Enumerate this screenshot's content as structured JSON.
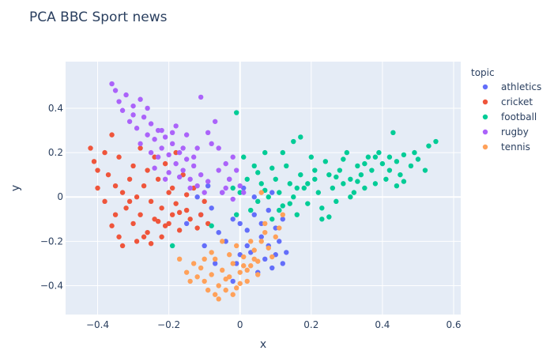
{
  "chart_data": {
    "type": "scatter",
    "title": "PCA BBC Sport news",
    "xlabel": "x",
    "ylabel": "y",
    "xlim": [
      -0.49,
      0.62
    ],
    "ylim": [
      -0.53,
      0.61
    ],
    "x_ticks": [
      -0.4,
      -0.2,
      0,
      0.2,
      0.4,
      0.6
    ],
    "x_tick_labels": [
      "−0.4",
      "−0.2",
      "0",
      "0.2",
      "0.4",
      "0.6"
    ],
    "y_ticks": [
      -0.4,
      -0.2,
      0,
      0.2,
      0.4
    ],
    "y_tick_labels": [
      "−0.4",
      "−0.2",
      "0",
      "0.2",
      "0.4"
    ],
    "grid": true,
    "legend": {
      "title": "topic",
      "position": "right"
    },
    "series": [
      {
        "name": "athletics",
        "color": "#636efa",
        "points": [
          [
            -0.02,
            -0.1
          ],
          [
            0.0,
            -0.12
          ],
          [
            0.02,
            -0.15
          ],
          [
            0.04,
            -0.08
          ],
          [
            0.06,
            -0.18
          ],
          [
            0.08,
            -0.22
          ],
          [
            0.1,
            -0.14
          ],
          [
            -0.04,
            -0.2
          ],
          [
            -0.06,
            -0.16
          ],
          [
            0.03,
            -0.25
          ],
          [
            0.07,
            -0.28
          ],
          [
            0.09,
            -0.32
          ],
          [
            -0.01,
            -0.3
          ],
          [
            0.05,
            -0.34
          ],
          [
            0.11,
            -0.2
          ],
          [
            0.12,
            -0.1
          ],
          [
            -0.08,
            -0.05
          ],
          [
            -0.05,
            0.02
          ],
          [
            -0.09,
            0.05
          ],
          [
            -0.03,
            0.08
          ],
          [
            0.01,
            0.04
          ],
          [
            -0.12,
            0.0
          ],
          [
            -0.15,
            -0.12
          ],
          [
            -0.1,
            -0.22
          ],
          [
            -0.07,
            -0.3
          ],
          [
            0.13,
            -0.25
          ],
          [
            0.08,
            -0.06
          ],
          [
            -0.02,
            -0.38
          ],
          [
            0.02,
            -0.22
          ],
          [
            0.06,
            -0.12
          ],
          [
            0.1,
            -0.26
          ],
          [
            0.04,
            0.0
          ],
          [
            0.09,
            0.02
          ],
          [
            -0.11,
            -0.08
          ],
          [
            0.0,
            -0.26
          ],
          [
            0.12,
            -0.3
          ]
        ]
      },
      {
        "name": "cricket",
        "color": "#ef553b",
        "points": [
          [
            -0.42,
            0.22
          ],
          [
            -0.41,
            0.16
          ],
          [
            -0.4,
            0.12
          ],
          [
            -0.38,
            0.2
          ],
          [
            -0.37,
            0.1
          ],
          [
            -0.36,
            0.28
          ],
          [
            -0.35,
            0.05
          ],
          [
            -0.34,
            0.18
          ],
          [
            -0.33,
            0.02
          ],
          [
            -0.32,
            -0.05
          ],
          [
            -0.31,
            0.08
          ],
          [
            -0.3,
            0.14
          ],
          [
            -0.3,
            -0.12
          ],
          [
            -0.29,
            -0.2
          ],
          [
            -0.28,
            0.22
          ],
          [
            -0.28,
            -0.08
          ],
          [
            -0.27,
            0.05
          ],
          [
            -0.26,
            0.12
          ],
          [
            -0.26,
            -0.16
          ],
          [
            -0.25,
            -0.02
          ],
          [
            -0.24,
            0.18
          ],
          [
            -0.24,
            -0.1
          ],
          [
            -0.23,
            0.08
          ],
          [
            -0.22,
            -0.05
          ],
          [
            -0.22,
            -0.18
          ],
          [
            -0.21,
            0.15
          ],
          [
            -0.2,
            0.02
          ],
          [
            -0.2,
            -0.12
          ],
          [
            -0.19,
            -0.08
          ],
          [
            -0.18,
            0.2
          ],
          [
            -0.18,
            -0.03
          ],
          [
            -0.17,
            -0.15
          ],
          [
            -0.16,
            0.1
          ],
          [
            -0.15,
            -0.06
          ],
          [
            -0.14,
            -0.1
          ],
          [
            -0.13,
            0.04
          ],
          [
            -0.12,
            -0.14
          ],
          [
            -0.11,
            -0.08
          ],
          [
            -0.1,
            -0.02
          ],
          [
            -0.09,
            -0.12
          ],
          [
            -0.34,
            -0.18
          ],
          [
            -0.33,
            -0.22
          ],
          [
            -0.36,
            -0.13
          ],
          [
            -0.31,
            -0.02
          ],
          [
            -0.29,
            0.0
          ],
          [
            -0.27,
            -0.18
          ],
          [
            -0.25,
            -0.21
          ],
          [
            -0.23,
            -0.11
          ],
          [
            -0.4,
            0.04
          ],
          [
            -0.21,
            -0.13
          ],
          [
            -0.19,
            0.04
          ],
          [
            -0.17,
            -0.07
          ],
          [
            -0.15,
            0.01
          ],
          [
            -0.38,
            -0.02
          ],
          [
            -0.35,
            -0.08
          ]
        ]
      },
      {
        "name": "football",
        "color": "#00cc96",
        "points": [
          [
            0.55,
            0.25
          ],
          [
            0.53,
            0.23
          ],
          [
            0.52,
            0.12
          ],
          [
            0.5,
            0.17
          ],
          [
            0.49,
            0.2
          ],
          [
            0.48,
            0.14
          ],
          [
            0.46,
            0.19
          ],
          [
            0.45,
            0.1
          ],
          [
            0.44,
            0.16
          ],
          [
            0.43,
            0.29
          ],
          [
            0.42,
            0.12
          ],
          [
            0.41,
            0.08
          ],
          [
            0.4,
            0.15
          ],
          [
            0.39,
            0.2
          ],
          [
            0.38,
            0.06
          ],
          [
            0.37,
            0.12
          ],
          [
            0.36,
            0.18
          ],
          [
            0.35,
            0.04
          ],
          [
            0.34,
            0.1
          ],
          [
            0.33,
            0.14
          ],
          [
            0.32,
            0.02
          ],
          [
            0.31,
            0.08
          ],
          [
            0.3,
            0.2
          ],
          [
            0.29,
            0.06
          ],
          [
            0.28,
            0.12
          ],
          [
            0.27,
            -0.02
          ],
          [
            0.26,
            0.04
          ],
          [
            0.25,
            0.1
          ],
          [
            0.24,
            0.16
          ],
          [
            0.23,
            -0.05
          ],
          [
            0.22,
            0.02
          ],
          [
            0.21,
            0.08
          ],
          [
            0.2,
            0.18
          ],
          [
            0.19,
            -0.03
          ],
          [
            0.18,
            0.04
          ],
          [
            0.17,
            0.1
          ],
          [
            0.16,
            -0.08
          ],
          [
            0.15,
            0.0
          ],
          [
            0.14,
            0.06
          ],
          [
            0.13,
            0.14
          ],
          [
            0.12,
            -0.04
          ],
          [
            0.11,
            0.02
          ],
          [
            0.1,
            0.08
          ],
          [
            0.09,
            -0.1
          ],
          [
            0.08,
            0.0
          ],
          [
            0.07,
            0.2
          ],
          [
            0.06,
            0.06
          ],
          [
            0.05,
            -0.02
          ],
          [
            0.04,
            0.14
          ],
          [
            0.03,
            -0.06
          ],
          [
            0.02,
            0.08
          ],
          [
            0.01,
            0.18
          ],
          [
            0.0,
            0.02
          ],
          [
            -0.01,
            -0.08
          ],
          [
            -0.02,
            0.04
          ],
          [
            0.15,
            0.25
          ],
          [
            0.17,
            0.27
          ],
          [
            0.23,
            -0.1
          ],
          [
            0.25,
            -0.09
          ],
          [
            0.38,
            0.18
          ],
          [
            0.42,
            0.18
          ],
          [
            0.44,
            0.05
          ],
          [
            0.46,
            0.07
          ],
          [
            0.35,
            0.15
          ],
          [
            -0.01,
            0.38
          ],
          [
            -0.08,
            -0.13
          ],
          [
            -0.19,
            -0.22
          ],
          [
            0.12,
            0.2
          ],
          [
            0.09,
            0.13
          ],
          [
            0.29,
            0.17
          ],
          [
            0.31,
            0.0
          ],
          [
            0.33,
            0.07
          ],
          [
            0.27,
            0.09
          ],
          [
            0.21,
            0.12
          ],
          [
            0.19,
            0.06
          ],
          [
            0.16,
            0.04
          ],
          [
            0.14,
            -0.03
          ],
          [
            0.11,
            -0.06
          ],
          [
            0.07,
            0.03
          ],
          [
            0.05,
            0.11
          ]
        ]
      },
      {
        "name": "rugby",
        "color": "#ab63fa",
        "points": [
          [
            -0.36,
            0.51
          ],
          [
            -0.35,
            0.48
          ],
          [
            -0.34,
            0.43
          ],
          [
            -0.33,
            0.39
          ],
          [
            -0.32,
            0.46
          ],
          [
            -0.31,
            0.34
          ],
          [
            -0.3,
            0.41
          ],
          [
            -0.29,
            0.31
          ],
          [
            -0.28,
            0.44
          ],
          [
            -0.27,
            0.36
          ],
          [
            -0.26,
            0.28
          ],
          [
            -0.25,
            0.33
          ],
          [
            -0.24,
            0.26
          ],
          [
            -0.23,
            0.3
          ],
          [
            -0.22,
            0.22
          ],
          [
            -0.21,
            0.27
          ],
          [
            -0.2,
            0.19
          ],
          [
            -0.19,
            0.24
          ],
          [
            -0.18,
            0.15
          ],
          [
            -0.17,
            0.2
          ],
          [
            -0.16,
            0.12
          ],
          [
            -0.15,
            0.17
          ],
          [
            -0.14,
            0.08
          ],
          [
            -0.13,
            0.14
          ],
          [
            -0.12,
            0.05
          ],
          [
            -0.11,
            0.1
          ],
          [
            -0.1,
            0.02
          ],
          [
            -0.09,
            0.07
          ],
          [
            -0.08,
            0.24
          ],
          [
            -0.07,
            0.34
          ],
          [
            -0.06,
            0.12
          ],
          [
            -0.05,
            0.02
          ],
          [
            -0.04,
            0.15
          ],
          [
            -0.03,
            0.08
          ],
          [
            -0.02,
            -0.01
          ],
          [
            -0.01,
            0.12
          ],
          [
            0.0,
            0.05
          ],
          [
            0.01,
            0.02
          ],
          [
            -0.11,
            0.45
          ],
          [
            -0.18,
            0.32
          ],
          [
            -0.23,
            0.18
          ],
          [
            -0.2,
            0.11
          ],
          [
            -0.15,
            0.28
          ],
          [
            -0.25,
            0.2
          ],
          [
            -0.28,
            0.24
          ],
          [
            -0.3,
            0.37
          ],
          [
            -0.26,
            0.4
          ],
          [
            -0.22,
            0.3
          ],
          [
            -0.12,
            0.22
          ],
          [
            -0.09,
            0.29
          ],
          [
            -0.06,
            0.22
          ],
          [
            -0.04,
            0.04
          ],
          [
            -0.02,
            0.18
          ],
          [
            -0.14,
            0.04
          ],
          [
            -0.17,
            0.09
          ],
          [
            -0.21,
            0.08
          ],
          [
            -0.24,
            0.13
          ],
          [
            -0.19,
            0.29
          ],
          [
            -0.16,
            0.22
          ],
          [
            -0.13,
            0.18
          ]
        ]
      },
      {
        "name": "tennis",
        "color": "#ffa15a",
        "points": [
          [
            -0.12,
            -0.36
          ],
          [
            -0.11,
            -0.32
          ],
          [
            -0.1,
            -0.38
          ],
          [
            -0.09,
            -0.42
          ],
          [
            -0.08,
            -0.35
          ],
          [
            -0.07,
            -0.28
          ],
          [
            -0.06,
            -0.4
          ],
          [
            -0.05,
            -0.33
          ],
          [
            -0.04,
            -0.37
          ],
          [
            -0.03,
            -0.26
          ],
          [
            -0.02,
            -0.3
          ],
          [
            -0.01,
            -0.22
          ],
          [
            0.0,
            -0.34
          ],
          [
            0.01,
            -0.27
          ],
          [
            0.02,
            -0.38
          ],
          [
            0.03,
            -0.31
          ],
          [
            0.04,
            -0.24
          ],
          [
            0.05,
            -0.29
          ],
          [
            0.06,
            -0.2
          ],
          [
            0.07,
            -0.16
          ],
          [
            0.08,
            -0.23
          ],
          [
            0.09,
            -0.27
          ],
          [
            0.1,
            -0.18
          ],
          [
            0.11,
            -0.14
          ],
          [
            -0.06,
            -0.46
          ],
          [
            -0.04,
            -0.42
          ],
          [
            -0.02,
            -0.44
          ],
          [
            0.0,
            -0.39
          ],
          [
            0.02,
            -0.33
          ],
          [
            -0.13,
            -0.3
          ],
          [
            -0.15,
            -0.34
          ],
          [
            -0.14,
            -0.38
          ],
          [
            -0.08,
            -0.25
          ],
          [
            -0.05,
            -0.2
          ],
          [
            0.03,
            -0.2
          ],
          [
            0.05,
            -0.35
          ],
          [
            -0.01,
            -0.41
          ],
          [
            -0.03,
            -0.36
          ],
          [
            -0.17,
            -0.28
          ],
          [
            0.12,
            -0.08
          ],
          [
            0.06,
            0.02
          ],
          [
            0.07,
            -0.12
          ],
          [
            -0.1,
            -0.28
          ],
          [
            -0.07,
            -0.44
          ],
          [
            0.01,
            -0.31
          ],
          [
            0.04,
            -0.28
          ]
        ]
      }
    ]
  }
}
